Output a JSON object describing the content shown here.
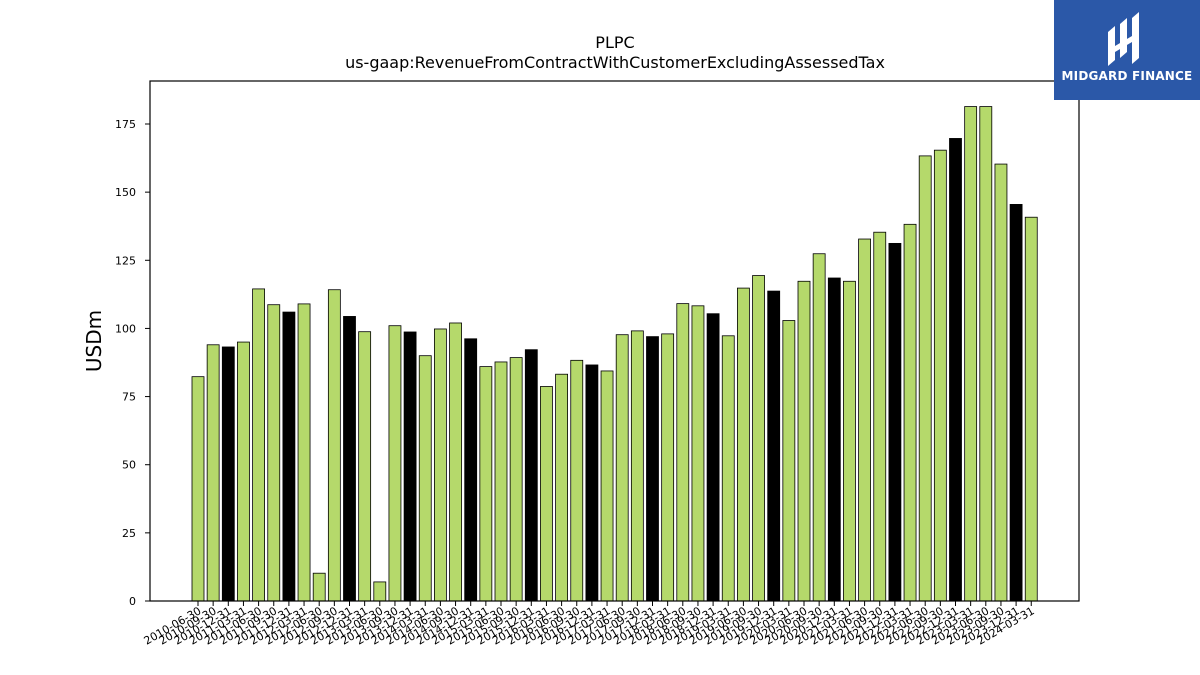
{
  "logo": {
    "text": "MIDGARD FINANCE",
    "icon": "midgard-logo-icon",
    "background": "#2b58a8"
  },
  "chart_data": {
    "type": "bar",
    "title": "PLPC",
    "subtitle": "us-gaap:RevenueFromContractWithCustomerExcludingAssessedTax",
    "xlabel": "",
    "ylabel": "USDm",
    "ylim": [
      0,
      190
    ],
    "yticks": [
      0,
      25,
      50,
      75,
      100,
      125,
      150,
      175
    ],
    "grid": false,
    "colors": {
      "quarter": "#b5d96b",
      "annual": "#000000"
    },
    "categories": [
      "2010-06-30",
      "2010-09-30",
      "2010-12-31",
      "2011-03-31",
      "2011-06-30",
      "2011-09-30",
      "2011-12-31",
      "2012-03-31",
      "2012-06-30",
      "2012-09-30",
      "2012-12-31",
      "2013-03-31",
      "2013-06-30",
      "2013-09-30",
      "2013-12-31",
      "2014-03-31",
      "2014-06-30",
      "2014-09-30",
      "2014-12-31",
      "2015-03-31",
      "2015-06-30",
      "2015-09-30",
      "2015-12-31",
      "2016-03-31",
      "2016-06-30",
      "2016-09-30",
      "2016-12-31",
      "2017-03-31",
      "2017-06-30",
      "2017-09-30",
      "2017-12-31",
      "2018-03-31",
      "2018-06-30",
      "2018-09-30",
      "2018-12-31",
      "2019-03-31",
      "2019-06-30",
      "2019-09-30",
      "2019-12-31",
      "2020-03-31",
      "2020-06-30",
      "2020-09-30",
      "2020-12-31",
      "2021-03-31",
      "2021-06-30",
      "2021-09-30",
      "2021-12-31",
      "2022-03-31",
      "2022-06-30",
      "2022-09-30",
      "2022-12-31",
      "2023-03-31",
      "2023-06-30",
      "2023-09-30",
      "2023-12-31",
      "2024-03-31"
    ],
    "values": [
      82.3,
      94.0,
      93.2,
      95.0,
      114.5,
      108.7,
      106.0,
      109.0,
      10.2,
      114.2,
      104.4,
      98.8,
      7.0,
      101.0,
      98.7,
      90.0,
      99.8,
      102.0,
      96.2,
      86.0,
      87.7,
      89.3,
      92.2,
      78.7,
      83.2,
      88.3,
      86.6,
      84.4,
      97.7,
      99.1,
      97.0,
      98.0,
      109.1,
      108.3,
      105.4,
      97.3,
      114.8,
      119.4,
      113.7,
      102.9,
      117.3,
      127.4,
      118.5,
      117.3,
      132.8,
      135.3,
      131.2,
      138.2,
      163.3,
      165.4,
      169.7,
      181.4,
      181.4,
      160.3,
      145.5,
      140.8
    ],
    "bar_kind": [
      "q",
      "q",
      "a",
      "q",
      "q",
      "q",
      "a",
      "q",
      "q",
      "q",
      "a",
      "q",
      "q",
      "q",
      "a",
      "q",
      "q",
      "q",
      "a",
      "q",
      "q",
      "q",
      "a",
      "q",
      "q",
      "q",
      "a",
      "q",
      "q",
      "q",
      "a",
      "q",
      "q",
      "q",
      "a",
      "q",
      "q",
      "q",
      "a",
      "q",
      "q",
      "q",
      "a",
      "q",
      "q",
      "q",
      "a",
      "q",
      "q",
      "q",
      "a",
      "q",
      "q",
      "q",
      "a",
      "q"
    ]
  }
}
